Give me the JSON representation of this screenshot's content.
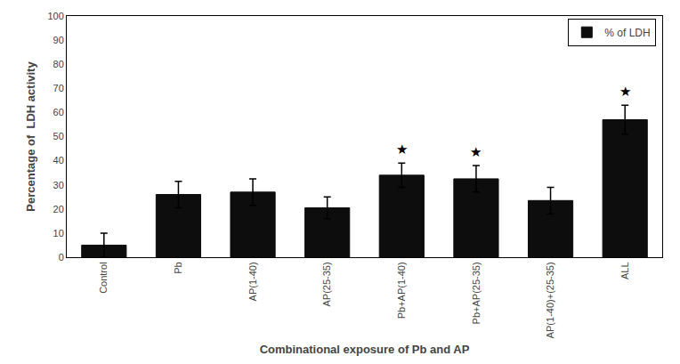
{
  "chart_data": {
    "type": "bar",
    "xlabel": "Combinational exposure of Pb and AP",
    "ylabel": "Percentage of  LDH activity",
    "categories": [
      "Control",
      "Pb",
      "AP(1-40)",
      "AP(25-35)",
      "Pb+AP(1-40)",
      "Pb+AP(25-35)",
      "AP(1-40)+(25-35)",
      "ALL"
    ],
    "series": [
      {
        "name": "% of LDH",
        "color": "#0d0d0d",
        "values": [
          5.0,
          26.0,
          27.0,
          20.5,
          34.0,
          32.5,
          23.5,
          57.0
        ],
        "errors": [
          5.0,
          5.5,
          5.5,
          4.5,
          5.0,
          5.5,
          5.5,
          6.0
        ]
      }
    ],
    "annotations": [
      {
        "category": "Pb+AP(1-40)",
        "text": "★"
      },
      {
        "category": "Pb+AP(25-35)",
        "text": "★"
      },
      {
        "category": "ALL",
        "text": "★"
      }
    ],
    "ylim": [
      0,
      100
    ],
    "yticks": [
      0,
      10,
      20,
      30,
      40,
      50,
      60,
      70,
      80,
      90,
      100
    ],
    "grid": false,
    "legend": "upper right"
  }
}
